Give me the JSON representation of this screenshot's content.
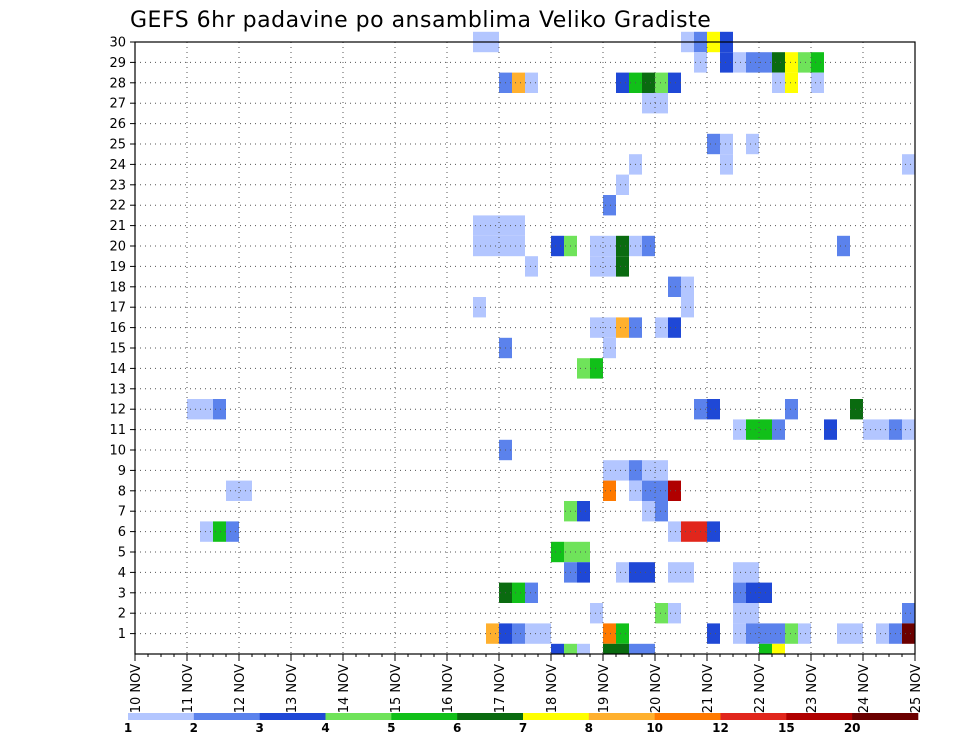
{
  "chart_data": {
    "type": "heatmap",
    "title": "GEFS 6hr padavine po ansamblima Veliko Gradiste",
    "xlabel": "",
    "ylabel": "",
    "x_tick_labels": [
      "10 NOV",
      "11 NOV",
      "12 NOV",
      "13 NOV",
      "14 NOV",
      "15 NOV",
      "16 NOV",
      "17 NOV",
      "18 NOV",
      "19 NOV",
      "20 NOV",
      "21 NOV",
      "22 NOV",
      "23 NOV",
      "24 NOV",
      "25 NOV"
    ],
    "y_tick_labels": [
      "1",
      "2",
      "3",
      "4",
      "5",
      "6",
      "7",
      "8",
      "9",
      "10",
      "11",
      "12",
      "13",
      "14",
      "15",
      "16",
      "17",
      "18",
      "19",
      "20",
      "21",
      "22",
      "23",
      "24",
      "25",
      "26",
      "27",
      "28",
      "29",
      "30"
    ],
    "xlim": [
      0,
      60
    ],
    "ylim": [
      0,
      30
    ],
    "grid": true,
    "legend_position": "bottom",
    "legend": {
      "labels": [
        "1",
        "2",
        "3",
        "4",
        "5",
        "6",
        "7",
        "8",
        "10",
        "12",
        "15",
        "20"
      ],
      "colors": [
        "#b3c6ff",
        "#5b82ec",
        "#1f48d6",
        "#6fe35a",
        "#11c019",
        "#0a6b10",
        "#ffff00",
        "#ffb02e",
        "#ff7a00",
        "#e1261c",
        "#b00000",
        "#6b0000"
      ]
    },
    "levels": {
      "1": "#b3c6ff",
      "2": "#5b82ec",
      "3": "#1f48d6",
      "4": "#6fe35a",
      "5": "#11c019",
      "6": "#0a6b10",
      "7": "#ffff00",
      "8": "#ffb02e",
      "10": "#ff7a00",
      "12": "#e1261c",
      "15": "#b00000",
      "20": "#6b0000"
    },
    "cells": [
      {
        "x": 26,
        "y": 30,
        "v": 1
      },
      {
        "x": 27,
        "y": 30,
        "v": 1
      },
      {
        "x": 42,
        "y": 30,
        "v": 1
      },
      {
        "x": 43,
        "y": 30,
        "v": 2
      },
      {
        "x": 44,
        "y": 30,
        "v": 7
      },
      {
        "x": 45,
        "y": 30,
        "v": 3
      },
      {
        "x": 43,
        "y": 29,
        "v": 1
      },
      {
        "x": 45,
        "y": 29,
        "v": 3
      },
      {
        "x": 46,
        "y": 29,
        "v": 1
      },
      {
        "x": 47,
        "y": 29,
        "v": 2
      },
      {
        "x": 48,
        "y": 29,
        "v": 2
      },
      {
        "x": 49,
        "y": 29,
        "v": 6
      },
      {
        "x": 50,
        "y": 29,
        "v": 7
      },
      {
        "x": 51,
        "y": 29,
        "v": 4
      },
      {
        "x": 52,
        "y": 29,
        "v": 5
      },
      {
        "x": 28,
        "y": 28,
        "v": 2
      },
      {
        "x": 29,
        "y": 28,
        "v": 8
      },
      {
        "x": 30,
        "y": 28,
        "v": 1
      },
      {
        "x": 37,
        "y": 28,
        "v": 3
      },
      {
        "x": 38,
        "y": 28,
        "v": 5
      },
      {
        "x": 39,
        "y": 28,
        "v": 6
      },
      {
        "x": 40,
        "y": 28,
        "v": 4
      },
      {
        "x": 41,
        "y": 28,
        "v": 3
      },
      {
        "x": 49,
        "y": 28,
        "v": 1
      },
      {
        "x": 50,
        "y": 28,
        "v": 7
      },
      {
        "x": 52,
        "y": 28,
        "v": 1
      },
      {
        "x": 39,
        "y": 27,
        "v": 1
      },
      {
        "x": 40,
        "y": 27,
        "v": 1
      },
      {
        "x": 44,
        "y": 25,
        "v": 2
      },
      {
        "x": 45,
        "y": 25,
        "v": 1
      },
      {
        "x": 47,
        "y": 25,
        "v": 1
      },
      {
        "x": 38,
        "y": 24,
        "v": 1
      },
      {
        "x": 45,
        "y": 24,
        "v": 1
      },
      {
        "x": 59,
        "y": 24,
        "v": 1
      },
      {
        "x": 37,
        "y": 23,
        "v": 1
      },
      {
        "x": 36,
        "y": 22,
        "v": 2
      },
      {
        "x": 26,
        "y": 21,
        "v": 1
      },
      {
        "x": 27,
        "y": 21,
        "v": 1
      },
      {
        "x": 28,
        "y": 21,
        "v": 1
      },
      {
        "x": 29,
        "y": 21,
        "v": 1
      },
      {
        "x": 26,
        "y": 20,
        "v": 1
      },
      {
        "x": 27,
        "y": 20,
        "v": 1
      },
      {
        "x": 28,
        "y": 20,
        "v": 1
      },
      {
        "x": 29,
        "y": 20,
        "v": 1
      },
      {
        "x": 32,
        "y": 20,
        "v": 3
      },
      {
        "x": 33,
        "y": 20,
        "v": 4
      },
      {
        "x": 35,
        "y": 20,
        "v": 1
      },
      {
        "x": 36,
        "y": 20,
        "v": 1
      },
      {
        "x": 37,
        "y": 20,
        "v": 6
      },
      {
        "x": 38,
        "y": 20,
        "v": 1
      },
      {
        "x": 39,
        "y": 20,
        "v": 2
      },
      {
        "x": 54,
        "y": 20,
        "v": 2
      },
      {
        "x": 30,
        "y": 19,
        "v": 1
      },
      {
        "x": 35,
        "y": 19,
        "v": 1
      },
      {
        "x": 36,
        "y": 19,
        "v": 1
      },
      {
        "x": 37,
        "y": 19,
        "v": 6
      },
      {
        "x": 41,
        "y": 18,
        "v": 2
      },
      {
        "x": 42,
        "y": 18,
        "v": 1
      },
      {
        "x": 26,
        "y": 17,
        "v": 1
      },
      {
        "x": 42,
        "y": 17,
        "v": 1
      },
      {
        "x": 35,
        "y": 16,
        "v": 1
      },
      {
        "x": 36,
        "y": 16,
        "v": 1
      },
      {
        "x": 37,
        "y": 16,
        "v": 8
      },
      {
        "x": 38,
        "y": 16,
        "v": 2
      },
      {
        "x": 40,
        "y": 16,
        "v": 1
      },
      {
        "x": 41,
        "y": 16,
        "v": 3
      },
      {
        "x": 28,
        "y": 15,
        "v": 2
      },
      {
        "x": 36,
        "y": 15,
        "v": 1
      },
      {
        "x": 34,
        "y": 14,
        "v": 4
      },
      {
        "x": 35,
        "y": 14,
        "v": 5
      },
      {
        "x": 4,
        "y": 12,
        "v": 1
      },
      {
        "x": 5,
        "y": 12,
        "v": 1
      },
      {
        "x": 6,
        "y": 12,
        "v": 2
      },
      {
        "x": 43,
        "y": 12,
        "v": 2
      },
      {
        "x": 44,
        "y": 12,
        "v": 3
      },
      {
        "x": 50,
        "y": 12,
        "v": 2
      },
      {
        "x": 55,
        "y": 12,
        "v": 6
      },
      {
        "x": 46,
        "y": 11,
        "v": 1
      },
      {
        "x": 47,
        "y": 11,
        "v": 5
      },
      {
        "x": 48,
        "y": 11,
        "v": 5
      },
      {
        "x": 49,
        "y": 11,
        "v": 2
      },
      {
        "x": 53,
        "y": 11,
        "v": 3
      },
      {
        "x": 56,
        "y": 11,
        "v": 1
      },
      {
        "x": 57,
        "y": 11,
        "v": 1
      },
      {
        "x": 58,
        "y": 11,
        "v": 2
      },
      {
        "x": 59,
        "y": 11,
        "v": 1
      },
      {
        "x": 28,
        "y": 10,
        "v": 2
      },
      {
        "x": 36,
        "y": 9,
        "v": 1
      },
      {
        "x": 37,
        "y": 9,
        "v": 1
      },
      {
        "x": 38,
        "y": 9,
        "v": 2
      },
      {
        "x": 39,
        "y": 9,
        "v": 1
      },
      {
        "x": 40,
        "y": 9,
        "v": 1
      },
      {
        "x": 7,
        "y": 8,
        "v": 1
      },
      {
        "x": 8,
        "y": 8,
        "v": 1
      },
      {
        "x": 36,
        "y": 8,
        "v": 10
      },
      {
        "x": 38,
        "y": 8,
        "v": 1
      },
      {
        "x": 39,
        "y": 8,
        "v": 2
      },
      {
        "x": 40,
        "y": 8,
        "v": 2
      },
      {
        "x": 41,
        "y": 8,
        "v": 15
      },
      {
        "x": 33,
        "y": 7,
        "v": 4
      },
      {
        "x": 34,
        "y": 7,
        "v": 3
      },
      {
        "x": 39,
        "y": 7,
        "v": 1
      },
      {
        "x": 40,
        "y": 7,
        "v": 2
      },
      {
        "x": 5,
        "y": 6,
        "v": 1
      },
      {
        "x": 6,
        "y": 6,
        "v": 5
      },
      {
        "x": 7,
        "y": 6,
        "v": 2
      },
      {
        "x": 41,
        "y": 6,
        "v": 1
      },
      {
        "x": 42,
        "y": 6,
        "v": 12
      },
      {
        "x": 43,
        "y": 6,
        "v": 12
      },
      {
        "x": 44,
        "y": 6,
        "v": 3
      },
      {
        "x": 32,
        "y": 5,
        "v": 5
      },
      {
        "x": 33,
        "y": 5,
        "v": 4
      },
      {
        "x": 34,
        "y": 5,
        "v": 4
      },
      {
        "x": 33,
        "y": 4,
        "v": 2
      },
      {
        "x": 34,
        "y": 4,
        "v": 3
      },
      {
        "x": 37,
        "y": 4,
        "v": 1
      },
      {
        "x": 38,
        "y": 4,
        "v": 3
      },
      {
        "x": 39,
        "y": 4,
        "v": 3
      },
      {
        "x": 41,
        "y": 4,
        "v": 1
      },
      {
        "x": 42,
        "y": 4,
        "v": 1
      },
      {
        "x": 46,
        "y": 4,
        "v": 1
      },
      {
        "x": 47,
        "y": 4,
        "v": 1
      },
      {
        "x": 28,
        "y": 3,
        "v": 6
      },
      {
        "x": 29,
        "y": 3,
        "v": 5
      },
      {
        "x": 30,
        "y": 3,
        "v": 2
      },
      {
        "x": 46,
        "y": 3,
        "v": 2
      },
      {
        "x": 47,
        "y": 3,
        "v": 3
      },
      {
        "x": 48,
        "y": 3,
        "v": 3
      },
      {
        "x": 35,
        "y": 2,
        "v": 1
      },
      {
        "x": 40,
        "y": 2,
        "v": 4
      },
      {
        "x": 41,
        "y": 2,
        "v": 1
      },
      {
        "x": 46,
        "y": 2,
        "v": 1
      },
      {
        "x": 47,
        "y": 2,
        "v": 1
      },
      {
        "x": 59,
        "y": 2,
        "v": 2
      },
      {
        "x": 27,
        "y": 1,
        "v": 8
      },
      {
        "x": 28,
        "y": 1,
        "v": 3
      },
      {
        "x": 29,
        "y": 1,
        "v": 2
      },
      {
        "x": 30,
        "y": 1,
        "v": 1
      },
      {
        "x": 31,
        "y": 1,
        "v": 1
      },
      {
        "x": 36,
        "y": 1,
        "v": 10
      },
      {
        "x": 37,
        "y": 1,
        "v": 5
      },
      {
        "x": 44,
        "y": 1,
        "v": 3
      },
      {
        "x": 46,
        "y": 1,
        "v": 1
      },
      {
        "x": 47,
        "y": 1,
        "v": 2
      },
      {
        "x": 48,
        "y": 1,
        "v": 2
      },
      {
        "x": 49,
        "y": 1,
        "v": 2
      },
      {
        "x": 50,
        "y": 1,
        "v": 4
      },
      {
        "x": 51,
        "y": 1,
        "v": 1
      },
      {
        "x": 54,
        "y": 1,
        "v": 1
      },
      {
        "x": 55,
        "y": 1,
        "v": 1
      },
      {
        "x": 57,
        "y": 1,
        "v": 1
      },
      {
        "x": 58,
        "y": 1,
        "v": 2
      },
      {
        "x": 59,
        "y": 1,
        "v": 20
      },
      {
        "x": 32,
        "y": 0,
        "v": 3
      },
      {
        "x": 33,
        "y": 0,
        "v": 4
      },
      {
        "x": 34,
        "y": 0,
        "v": 1
      },
      {
        "x": 36,
        "y": 0,
        "v": 6
      },
      {
        "x": 37,
        "y": 0,
        "v": 6
      },
      {
        "x": 38,
        "y": 0,
        "v": 2
      },
      {
        "x": 39,
        "y": 0,
        "v": 2
      },
      {
        "x": 48,
        "y": 0,
        "v": 5
      },
      {
        "x": 49,
        "y": 0,
        "v": 7
      }
    ]
  }
}
